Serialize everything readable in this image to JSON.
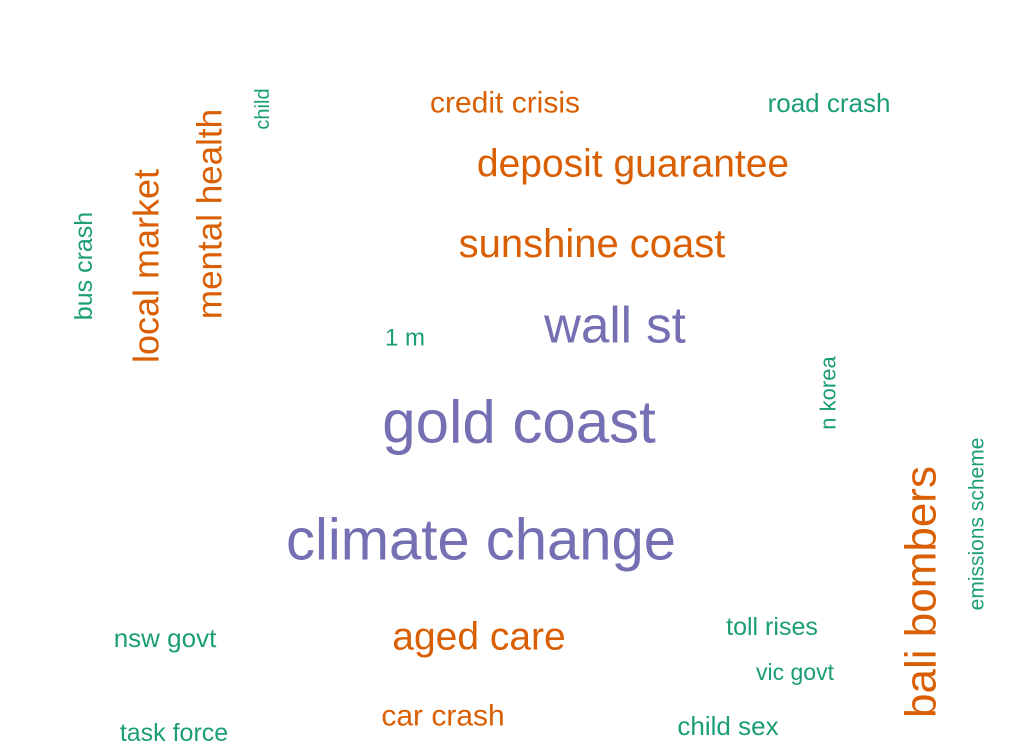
{
  "chart_data": {
    "type": "wordcloud",
    "title": "",
    "colors": {
      "purple": "#7570b3",
      "orange": "#d95f02",
      "green": "#1b9e77"
    },
    "words": [
      {
        "text": "climate change",
        "color": "purple",
        "orientation": "horizontal"
      },
      {
        "text": "gold coast",
        "color": "purple",
        "orientation": "horizontal"
      },
      {
        "text": "wall st",
        "color": "purple",
        "orientation": "horizontal"
      },
      {
        "text": "bali bombers",
        "color": "orange",
        "orientation": "vertical"
      },
      {
        "text": "sunshine coast",
        "color": "orange",
        "orientation": "horizontal"
      },
      {
        "text": "deposit guarantee",
        "color": "orange",
        "orientation": "horizontal"
      },
      {
        "text": "local market",
        "color": "orange",
        "orientation": "vertical"
      },
      {
        "text": "mental health",
        "color": "orange",
        "orientation": "vertical"
      },
      {
        "text": "aged care",
        "color": "orange",
        "orientation": "horizontal"
      },
      {
        "text": "credit crisis",
        "color": "orange",
        "orientation": "horizontal"
      },
      {
        "text": "car crash",
        "color": "orange",
        "orientation": "horizontal"
      },
      {
        "text": "road crash",
        "color": "green",
        "orientation": "horizontal"
      },
      {
        "text": "bus crash",
        "color": "green",
        "orientation": "vertical"
      },
      {
        "text": "child",
        "color": "green",
        "orientation": "vertical"
      },
      {
        "text": "1 m",
        "color": "green",
        "orientation": "horizontal"
      },
      {
        "text": "n korea",
        "color": "green",
        "orientation": "vertical"
      },
      {
        "text": "emissions scheme",
        "color": "green",
        "orientation": "vertical"
      },
      {
        "text": "nsw govt",
        "color": "green",
        "orientation": "horizontal"
      },
      {
        "text": "toll rises",
        "color": "green",
        "orientation": "horizontal"
      },
      {
        "text": "vic govt",
        "color": "green",
        "orientation": "horizontal"
      },
      {
        "text": "task force",
        "color": "green",
        "orientation": "horizontal"
      },
      {
        "text": "child sex",
        "color": "green",
        "orientation": "horizontal"
      }
    ]
  }
}
